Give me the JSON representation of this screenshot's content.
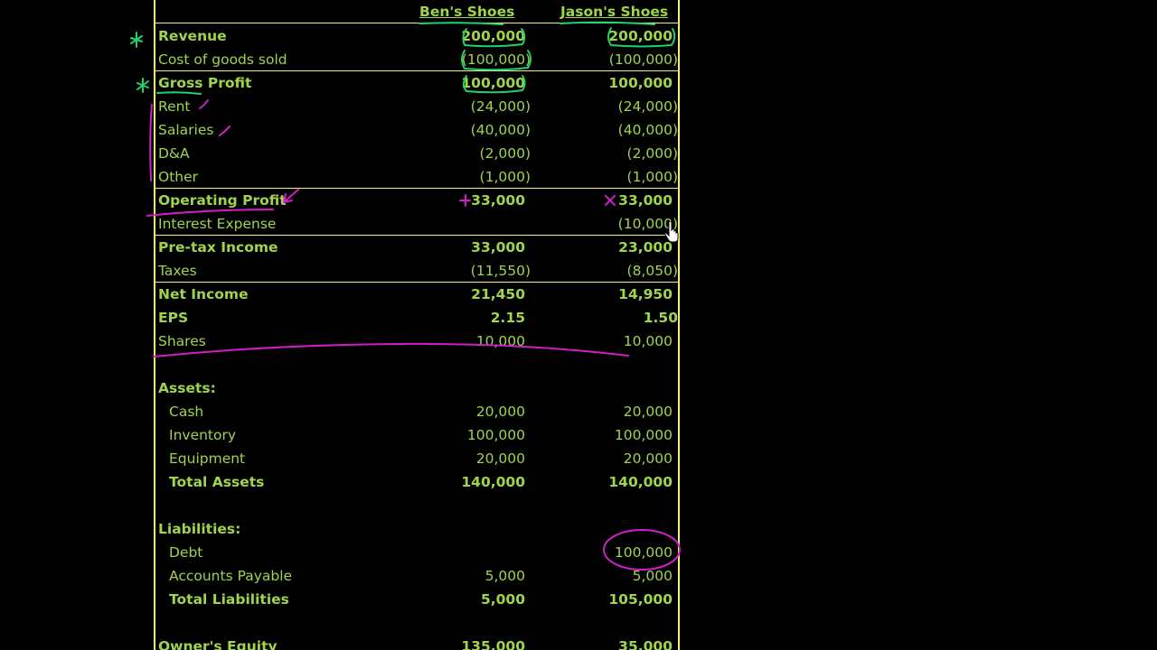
{
  "columns": {
    "col1": "Ben's Shoes",
    "col2": "Jason's Shoes"
  },
  "rows": [
    {
      "label": "Revenue",
      "v1": "200,000",
      "v2": "200,000"
    },
    {
      "label": "Cost of goods sold",
      "v1": "(100,000)",
      "v2": "(100,000)"
    },
    {
      "label": "Gross Profit",
      "v1": "100,000",
      "v2": "100,000"
    },
    {
      "label": "Rent",
      "v1": "(24,000)",
      "v2": "(24,000)"
    },
    {
      "label": "Salaries",
      "v1": "(40,000)",
      "v2": "(40,000)"
    },
    {
      "label": "D&A",
      "v1": "(2,000)",
      "v2": "(2,000)"
    },
    {
      "label": "Other",
      "v1": "(1,000)",
      "v2": "(1,000)"
    },
    {
      "label": "Operating Profit",
      "v1": "33,000",
      "v2": "33,000"
    },
    {
      "label": "Interest Expense",
      "v1": "",
      "v2": "(10,000)"
    },
    {
      "label": "Pre-tax Income",
      "v1": "33,000",
      "v2": "23,000"
    },
    {
      "label": "Taxes",
      "v1": "(11,550)",
      "v2": "(8,050)"
    },
    {
      "label": "Net Income",
      "v1": "21,450",
      "v2": "14,950"
    },
    {
      "label": "EPS",
      "v1": "2.15",
      "v2": "1.50"
    },
    {
      "label": "Shares",
      "v1": "10,000",
      "v2": "10,000"
    },
    {
      "label": "Assets:",
      "v1": "",
      "v2": ""
    },
    {
      "label": "Cash",
      "v1": "20,000",
      "v2": "20,000"
    },
    {
      "label": "Inventory",
      "v1": "100,000",
      "v2": "100,000"
    },
    {
      "label": "Equipment",
      "v1": "20,000",
      "v2": "20,000"
    },
    {
      "label": "Total Assets",
      "v1": "140,000",
      "v2": "140,000"
    },
    {
      "label": "Liabilities:",
      "v1": "",
      "v2": ""
    },
    {
      "label": "Debt",
      "v1": "",
      "v2": "100,000"
    },
    {
      "label": "Accounts Payable",
      "v1": "5,000",
      "v2": "5,000"
    },
    {
      "label": "Total Liabilities",
      "v1": "5,000",
      "v2": "105,000"
    },
    {
      "label": "Owner's Equity",
      "v1": "135,000",
      "v2": "35,000"
    }
  ],
  "colors": {
    "text": "#9fd44c",
    "gridline": "#f2f27a",
    "annotation_green": "#1ed36a",
    "annotation_magenta": "#d21ec8",
    "background": "#000000"
  }
}
